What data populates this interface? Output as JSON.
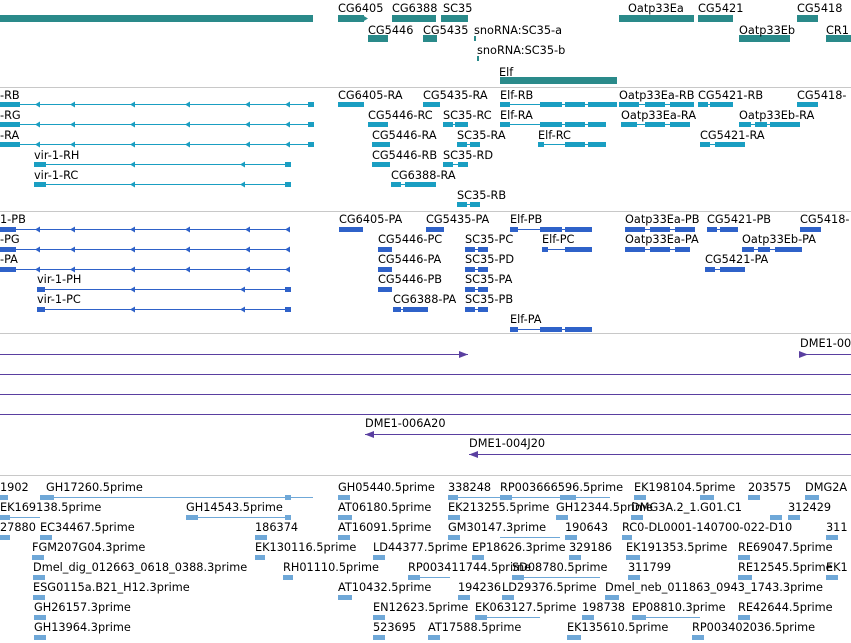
{
  "colors": {
    "gene": "#2a8a8a",
    "transcript_cyan": "#1a9ec2",
    "transcript_blue": "#2f62c9",
    "contig": "#5a3fa0",
    "est": "#6fa8d8",
    "separator": "#c8c8c8",
    "text": "#000000"
  },
  "tracks": {
    "genes": {
      "labels": [
        "CG6405",
        "CG6388",
        "SC35",
        "Oatp33Ea",
        "CG5421",
        "CG5418",
        "CG5446",
        "CG5435",
        "snoRNA:SC35-a",
        "Oatp33Eb",
        "CR1",
        "snoRNA:SC35-b",
        "Elf"
      ]
    },
    "transcripts_a": {
      "labels": [
        "-RB",
        "-RG",
        "-RA",
        "vir-1-RH",
        "vir-1-RC",
        "CG6405-RA",
        "CG5435-RA",
        "Elf-RB",
        "Oatp33Ea-RB",
        "CG5421-RB",
        "CG5418-",
        "CG5446-RC",
        "SC35-RC",
        "Elf-RA",
        "Oatp33Ea-RA",
        "Oatp33Eb-RA",
        "CG5446-RA",
        "SC35-RA",
        "Elf-RC",
        "CG5421-RA",
        "CG5446-RB",
        "SC35-RD",
        "CG6388-RA",
        "SC35-RB"
      ]
    },
    "transcripts_b": {
      "labels": [
        "1-PB",
        "-PG",
        "-PA",
        "vir-1-PH",
        "vir-1-PC",
        "CG6405-PA",
        "CG5435-PA",
        "Elf-PB",
        "Oatp33Ea-PB",
        "CG5421-PB",
        "CG5418-",
        "CG5446-PC",
        "SC35-PC",
        "Elf-PC",
        "Oatp33Ea-PA",
        "Oatp33Eb-PA",
        "CG5446-PA",
        "SC35-PD",
        "CG5421-PA",
        "CG5446-PB",
        "SC35-PA",
        "CG6388-PA",
        "SC35-PB",
        "Elf-PA"
      ]
    },
    "contigs": {
      "labels": [
        "DME1-00",
        "DME1-006A20",
        "DME1-004J20"
      ]
    },
    "ests": {
      "labels": [
        "1902",
        "GH17260.5prime",
        "GH05440.5prime",
        "338248",
        "RP003666596.5prime",
        "EK198104.5prime",
        "203575",
        "DMG2A",
        "EK169138.5prime",
        "GH14543.5prime",
        "AT06180.5prime",
        "EK213255.5prime",
        "GH12344.5prime",
        "DMG3A.2_1.G01.C1",
        "312429",
        "27880",
        "EC34467.5prime",
        "186374",
        "AT16091.5prime",
        "GM30147.3prime",
        "190643",
        "RC0-DL0001-140700-022-D10",
        "311",
        "FGM207G04.3prime",
        "EK130116.5prime",
        "LD44377.5prime",
        "EP18626.3prime",
        "329186",
        "EK191353.5prime",
        "RE69047.5prime",
        "Dmel_dig_012663_0618_0388.3prime",
        "RH01110.5prime",
        "RP003411744.5prime",
        "SD08780.5prime",
        "311799",
        "RE12545.5prime",
        "EK1",
        "ESG0115a.B21_H12.3prime",
        "AT10432.5prime",
        "194236",
        "LD29376.5prime",
        "Dmel_neb_011863_0943_1743.3prime",
        "GH26157.3prime",
        "EN12623.5prime",
        "EK063127.5prime",
        "198738",
        "EP08810.3prime",
        "RE42644.5prime",
        "GH13964.3prime",
        "523695",
        "AT17588.5prime",
        "EK135610.5prime",
        "RP003402036.5prime"
      ]
    }
  }
}
